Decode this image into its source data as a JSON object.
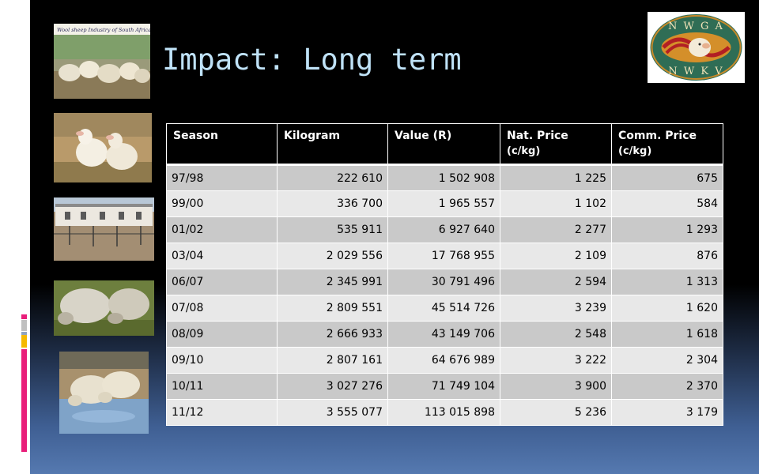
{
  "slide": {
    "title": "Impact: Long term",
    "accent_colors": [
      "#e91e7a",
      "#c0c0c0",
      "#8fa3c0",
      "#f5b800",
      "#e91e7a"
    ]
  },
  "images": {
    "photo_top_caption": "Wool sheep Industry of South Africa",
    "logo_top": "N W G A",
    "logo_bottom": "N W K V"
  },
  "table": {
    "headers": [
      {
        "label": "Season",
        "unit": ""
      },
      {
        "label": "Kilogram",
        "unit": ""
      },
      {
        "label": "Value (R)",
        "unit": ""
      },
      {
        "label": "Nat. Price",
        "unit": "(c/kg)"
      },
      {
        "label": "Comm. Price",
        "unit": "(c/kg)"
      }
    ],
    "rows": [
      [
        "97/98",
        "222 610",
        "1 502 908",
        "1 225",
        "675"
      ],
      [
        "99/00",
        "336 700",
        "1 965 557",
        "1 102",
        "584"
      ],
      [
        "01/02",
        "535 911",
        "6 927 640",
        "2 277",
        "1 293"
      ],
      [
        "03/04",
        "2 029 556",
        "17 768 955",
        "2 109",
        "876"
      ],
      [
        "06/07",
        "2 345 991",
        "30 791 496",
        "2 594",
        "1 313"
      ],
      [
        "07/08",
        "2 809 551",
        "45 514 726",
        "3 239",
        "1 620"
      ],
      [
        "08/09",
        "2 666 933",
        "43 149 706",
        "2 548",
        "1 618"
      ],
      [
        "09/10",
        "2 807 161",
        "64 676 989",
        "3 222",
        "2 304"
      ],
      [
        "10/11",
        "3 027 276",
        "71 749 104",
        "3 900",
        "2 370"
      ],
      [
        "11/12",
        "3 555 077",
        "113 015 898",
        "5 236",
        "3 179"
      ]
    ]
  }
}
